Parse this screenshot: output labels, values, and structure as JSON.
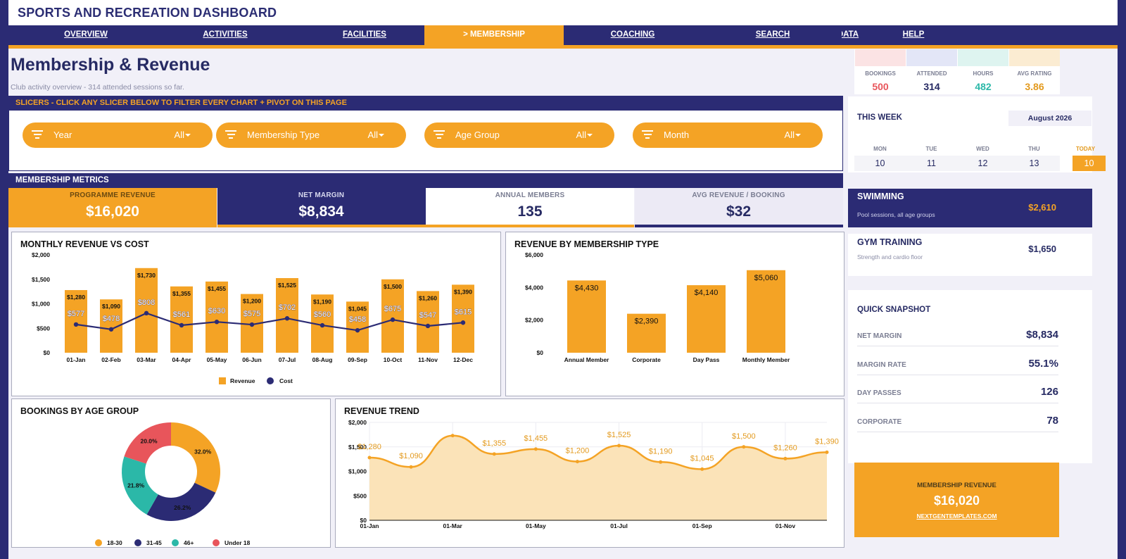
{
  "app": {
    "title": "SPORTS AND RECREATION DASHBOARD"
  },
  "nav": {
    "items": [
      {
        "label": "OVERVIEW",
        "active": false
      },
      {
        "label": "ACTIVITIES",
        "active": false
      },
      {
        "label": "FACILITIES",
        "active": false
      },
      {
        "label": "> MEMBERSHIP",
        "active": true
      },
      {
        "label": "COACHING",
        "active": false
      },
      {
        "label": "SEARCH",
        "active": false
      },
      {
        "label": "DATA",
        "active": false
      },
      {
        "label": "HELP",
        "active": false
      }
    ]
  },
  "page": {
    "title": "Membership & Revenue",
    "subtitle": "Club activity overview  -  314 attended sessions so far."
  },
  "slicers": {
    "header": "SLICERS  -  CLICK ANY SLICER BELOW TO FILTER EVERY CHART + PIVOT ON THIS PAGE",
    "items": [
      {
        "label": "Year",
        "value": "All"
      },
      {
        "label": "Membership Type",
        "value": "All"
      },
      {
        "label": "Age Group",
        "value": "All"
      },
      {
        "label": "Month",
        "value": "All"
      }
    ]
  },
  "metrics": {
    "header": "MEMBERSHIP METRICS",
    "cards": [
      {
        "label": "PROGRAMME REVENUE",
        "value": "$16,020"
      },
      {
        "label": "NET MARGIN",
        "value": "$8,834"
      },
      {
        "label": "ANNUAL MEMBERS",
        "value": "135"
      },
      {
        "label": "AVG REVENUE / BOOKING",
        "value": "$32"
      }
    ]
  },
  "mini_stats": [
    {
      "label": "BOOKINGS",
      "value": "500",
      "color": "#e8555b",
      "tint": "#fbe3e4"
    },
    {
      "label": "ATTENDED",
      "value": "314",
      "color": "#262a63",
      "tint": "#e3e6f7"
    },
    {
      "label": "HOURS",
      "value": "482",
      "color": "#2bb8a8",
      "tint": "#def4f0"
    },
    {
      "label": "AVG RATING",
      "value": "3.86",
      "color": "#e39a1e",
      "tint": "#fbecd2"
    }
  ],
  "week": {
    "title": "THIS WEEK",
    "month": "August 2026",
    "days": [
      {
        "label": "MON",
        "value": "10",
        "today": false
      },
      {
        "label": "TUE",
        "value": "11",
        "today": false
      },
      {
        "label": "WED",
        "value": "12",
        "today": false
      },
      {
        "label": "THU",
        "value": "13",
        "today": false
      },
      {
        "label": "TODAY",
        "value": "10",
        "today": true
      }
    ]
  },
  "activities": [
    {
      "name": "SWIMMING",
      "desc": "Pool sessions, all age groups",
      "value": "$2,610"
    },
    {
      "name": "GYM TRAINING",
      "desc": "Strength and cardio floor",
      "value": "$1,650"
    }
  ],
  "snapshot": {
    "title": "QUICK SNAPSHOT",
    "rows": [
      {
        "label": "NET MARGIN",
        "value": "$8,834"
      },
      {
        "label": "MARGIN RATE",
        "value": "55.1%"
      },
      {
        "label": "DAY PASSES",
        "value": "126"
      },
      {
        "label": "CORPORATE",
        "value": "78"
      }
    ]
  },
  "promo": {
    "label": "MEMBERSHIP REVENUE",
    "value": "$16,020",
    "link": "NEXTGENTEMPLATES.COM"
  },
  "colors": {
    "navy": "#2b2b74",
    "orange": "#f4a325",
    "teal": "#2bb8a8",
    "red": "#e8555b"
  },
  "chart_data": [
    {
      "type": "bar",
      "title": "MONTHLY REVENUE VS COST",
      "categories": [
        "01-Jan",
        "02-Feb",
        "03-Mar",
        "04-Apr",
        "05-May",
        "06-Jun",
        "07-Jul",
        "08-Aug",
        "09-Sep",
        "10-Oct",
        "11-Nov",
        "12-Dec"
      ],
      "series": [
        {
          "name": "Revenue",
          "type": "bar",
          "values": [
            1280,
            1090,
            1730,
            1355,
            1455,
            1200,
            1525,
            1190,
            1045,
            1500,
            1260,
            1390
          ]
        },
        {
          "name": "Cost",
          "type": "line",
          "values": [
            577,
            478,
            808,
            561,
            630,
            575,
            702,
            560,
            458,
            675,
            547,
            615
          ]
        }
      ],
      "yticks": [
        "$0",
        "$500",
        "$1,000",
        "$1,500",
        "$2,000"
      ],
      "ylim": [
        0,
        2000
      ],
      "legend": "bottom"
    },
    {
      "type": "bar",
      "title": "REVENUE BY MEMBERSHIP TYPE",
      "categories": [
        "Annual Member",
        "Corporate",
        "Day Pass",
        "Monthly Member"
      ],
      "values": [
        4430,
        2390,
        4140,
        5060
      ],
      "labels": [
        "$4,430",
        "$2,390",
        "$4,140",
        "$5,060"
      ],
      "yticks": [
        "$0",
        "$2,000",
        "$4,000",
        "$6,000"
      ],
      "ylim": [
        0,
        6000
      ]
    },
    {
      "type": "pie",
      "title": "BOOKINGS BY AGE GROUP",
      "categories": [
        "18-30",
        "31-45",
        "46+",
        "Under 18"
      ],
      "values": [
        32.0,
        26.2,
        21.8,
        20.0
      ],
      "labels": [
        "32.0%",
        "26.2%",
        "21.8%",
        "20.0%"
      ],
      "colors": [
        "#f4a325",
        "#2b2b74",
        "#2bb8a8",
        "#e8555b"
      ],
      "legend": "bottom"
    },
    {
      "type": "area",
      "title": "REVENUE TREND",
      "x": [
        "01-Jan",
        "02-Feb",
        "03-Mar",
        "04-Apr",
        "05-May",
        "06-Jun",
        "07-Jul",
        "08-Aug",
        "09-Sep",
        "10-Oct",
        "11-Nov",
        "12-Dec"
      ],
      "values": [
        1280,
        1090,
        1730,
        1355,
        1455,
        1200,
        1525,
        1190,
        1045,
        1500,
        1260,
        1390
      ],
      "labels": [
        "$1,280",
        "$1,090",
        "",
        "$1,355",
        "$1,455",
        "$1,200",
        "$1,525",
        "$1,190",
        "$1,045",
        "$1,500",
        "$1,260",
        "$1,390"
      ],
      "xticks": [
        "01-Jan",
        "01-Mar",
        "01-May",
        "01-Jul",
        "01-Sep",
        "01-Nov"
      ],
      "yticks": [
        "$0",
        "$500",
        "$1,000",
        "$1,500",
        "$2,000"
      ],
      "ylim": [
        0,
        2000
      ]
    }
  ]
}
